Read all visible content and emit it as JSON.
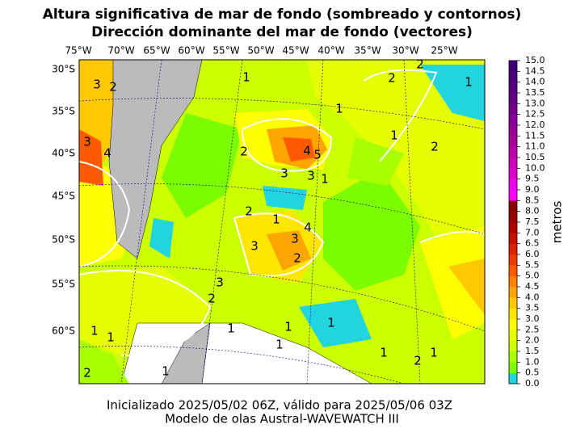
{
  "header": {
    "title_lines": [
      "Altura significativa de mar de fondo (sombreado y contornos)",
      "Dirección dominante del mar de fondo (vectores)"
    ]
  },
  "map": {
    "lon_labels": [
      "75°W",
      "70°W",
      "65°W",
      "60°W",
      "55°W",
      "50°W",
      "45°W",
      "40°W",
      "35°W",
      "30°W",
      "25°W"
    ],
    "lat_labels": [
      "30°S",
      "35°S",
      "40°S",
      "45°S",
      "50°S",
      "55°S",
      "60°S"
    ],
    "contour_labels": [
      "3",
      "2",
      "2",
      "2",
      "1",
      "1",
      "1",
      "1",
      "2",
      "3",
      "4",
      "2",
      "4",
      "5",
      "3",
      "3",
      "1",
      "2",
      "1",
      "4",
      "3",
      "3",
      "2",
      "3",
      "2",
      "1",
      "1",
      "1",
      "1",
      "1",
      "1",
      "1",
      "2",
      "1",
      "2",
      "1"
    ]
  },
  "colorbar": {
    "label": "metros",
    "ticks": [
      "0.0",
      "0.5",
      "1.0",
      "1.5",
      "2.0",
      "2.5",
      "3.0",
      "3.5",
      "4.0",
      "4.5",
      "5.0",
      "5.5",
      "6.0",
      "6.5",
      "7.0",
      "7.5",
      "8.0",
      "8.5",
      "9.0",
      "9.5",
      "10.0",
      "10.5",
      "11.0",
      "11.5",
      "12.0",
      "12.5",
      "13.0",
      "13.5",
      "14.0",
      "14.5",
      "15.0"
    ],
    "colors": [
      "#22d3e0",
      "#7cfc00",
      "#a8ff00",
      "#ccff00",
      "#e6ff00",
      "#ffff00",
      "#ffe600",
      "#ffc800",
      "#ffa500",
      "#ff8000",
      "#ff5a00",
      "#ee3a00",
      "#dd2200",
      "#c81000",
      "#b00000",
      "#9a0000",
      "#880000",
      "#ff00ff",
      "#ee00ee",
      "#dd00cc",
      "#cc00bb",
      "#bb00aa",
      "#aa0099",
      "#990099",
      "#880099",
      "#770088",
      "#660088",
      "#550080",
      "#4b0080",
      "#40007a"
    ]
  },
  "footer": {
    "lines": [
      "Inicializado 2025/05/02 06Z, válido para 2025/05/06 03Z",
      "Modelo de olas Austral-WAVEWATCH III"
    ]
  }
}
